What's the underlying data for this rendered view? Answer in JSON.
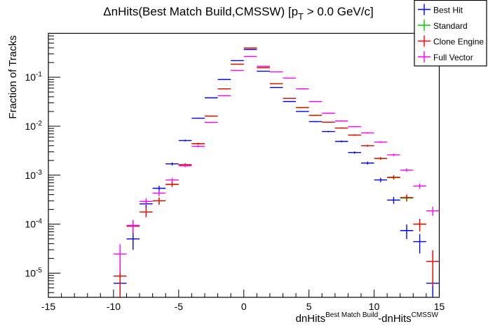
{
  "chart_data": {
    "type": "scatter",
    "title": {
      "prefix": "ΔnHits(Best Match Build,CMSSW) [p",
      "sub": "T",
      "suffix": " > 0.0 GeV/c]"
    },
    "xlabel": {
      "base1": "dnHits",
      "sup1": "Best Match Build",
      "base2": "-dnHits",
      "sup2": "CMSSW"
    },
    "ylabel": "Fraction of Tracks",
    "xlim": [
      -15,
      15
    ],
    "ylim": [
      3.2e-06,
      0.79
    ],
    "yscale": "log",
    "grid": false,
    "legend_position": "top-right",
    "x_ticks": [
      "-15",
      "-10",
      "-5",
      "0",
      "5",
      "10",
      "15"
    ],
    "y_ticks": [
      {
        "base": "10",
        "exp": "-1"
      },
      {
        "base": "10",
        "exp": "-2"
      },
      {
        "base": "10",
        "exp": "-3"
      },
      {
        "base": "10",
        "exp": "-4"
      },
      {
        "base": "10",
        "exp": "-5"
      }
    ],
    "x": [
      -9.5,
      -8.5,
      -7.5,
      -6.5,
      -5.5,
      -4.5,
      -3.5,
      -2.5,
      -1.5,
      -0.5,
      0.5,
      1.5,
      2.5,
      3.5,
      4.5,
      5.5,
      6.5,
      7.5,
      8.5,
      9.5,
      10.5,
      11.5,
      12.5,
      13.5,
      14.5
    ],
    "series": [
      {
        "name": "Best Hit",
        "color": "#0000ff",
        "values": [
          6.2e-06,
          5e-05,
          0.00026,
          0.00054,
          0.0017,
          0.0051,
          0.0146,
          0.038,
          0.09,
          0.219,
          0.37,
          0.133,
          0.062,
          0.032,
          0.02,
          0.0124,
          0.0078,
          0.0049,
          0.0029,
          0.00177,
          0.0008,
          0.00031,
          7.4e-05,
          4.4e-05,
          6.2e-06
        ]
      },
      {
        "name": "Standard",
        "color": "#00cc00",
        "values": [
          8.7e-06,
          9.1e-05,
          0.000177,
          0.0003,
          0.00065,
          0.00164,
          0.0044,
          0.0161,
          0.058,
          0.185,
          0.396,
          0.157,
          0.0736,
          0.037,
          0.0242,
          0.0167,
          0.0121,
          0.0092,
          0.0066,
          0.004,
          0.0022,
          0.00089,
          0.00034,
          0.0001,
          1.74e-05
        ]
      },
      {
        "name": "Clone Engine",
        "color": "#ff0000",
        "values": [
          8.7e-06,
          9.1e-05,
          0.000177,
          0.0003,
          0.00065,
          0.00164,
          0.0044,
          0.0161,
          0.058,
          0.185,
          0.396,
          0.157,
          0.0736,
          0.037,
          0.0239,
          0.0167,
          0.0121,
          0.0092,
          0.0066,
          0.004,
          0.0022,
          0.00091,
          0.00035,
          0.0001,
          1.74e-05
        ]
      },
      {
        "name": "Full Vector",
        "color": "#ff00ff",
        "values": [
          2.46e-05,
          9.4e-05,
          0.00029,
          0.00043,
          0.0008,
          0.00156,
          0.0039,
          0.012,
          0.042,
          0.138,
          0.267,
          0.168,
          0.129,
          0.096,
          0.058,
          0.032,
          0.0184,
          0.0128,
          0.0098,
          0.0073,
          0.00475,
          0.0026,
          0.00127,
          0.0006,
          0.000187
        ]
      }
    ]
  }
}
